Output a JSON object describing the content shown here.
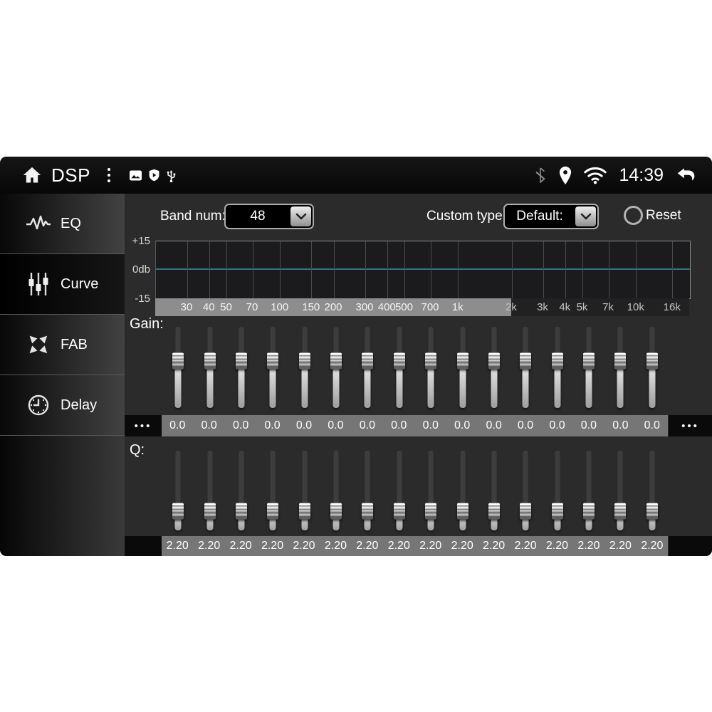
{
  "status_bar": {
    "title": "DSP",
    "time": "14:39",
    "left_icons": [
      "home-icon",
      "vertical-dots-menu-icon",
      "image-icon",
      "shield-icon",
      "usb-icon"
    ],
    "right_icons": [
      "bluetooth-icon",
      "location-icon",
      "wifi-icon",
      "back-icon"
    ]
  },
  "sidebar": {
    "items": [
      {
        "label": "EQ",
        "icon": "waveform-icon",
        "selected": false
      },
      {
        "label": "Curve",
        "icon": "faders-icon",
        "selected": true
      },
      {
        "label": "FAB",
        "icon": "fab-arrows-icon",
        "selected": false
      },
      {
        "label": "Delay",
        "icon": "clock-icon",
        "selected": false
      }
    ]
  },
  "controls": {
    "band_num_label": "Band num:",
    "band_num_value": "48",
    "custom_type_label": "Custom type:",
    "custom_type_value": "Default:",
    "reset_label": "Reset"
  },
  "eq_graph": {
    "y_axis_labels": [
      "+15",
      "0db",
      "-15"
    ],
    "freq_labels": [
      {
        "label": "30",
        "hz": 30
      },
      {
        "label": "40",
        "hz": 40
      },
      {
        "label": "50",
        "hz": 50
      },
      {
        "label": "70",
        "hz": 70
      },
      {
        "label": "100",
        "hz": 100
      },
      {
        "label": "150",
        "hz": 150
      },
      {
        "label": "200",
        "hz": 200
      },
      {
        "label": "300",
        "hz": 300
      },
      {
        "label": "400",
        "hz": 400
      },
      {
        "label": "500",
        "hz": 500
      },
      {
        "label": "700",
        "hz": 700
      },
      {
        "label": "1k",
        "hz": 1000
      },
      {
        "label": "2k",
        "hz": 2000
      },
      {
        "label": "3k",
        "hz": 3000
      },
      {
        "label": "4k",
        "hz": 4000
      },
      {
        "label": "5k",
        "hz": 5000
      },
      {
        "label": "7k",
        "hz": 7000
      },
      {
        "label": "10k",
        "hz": 10000
      },
      {
        "label": "16k",
        "hz": 16000
      }
    ],
    "freq_range_hz": [
      20,
      20000
    ],
    "curve": {
      "db": 0,
      "color": "#2e7682"
    },
    "strip_highlight_until_hz": 2000
  },
  "gain": {
    "label": "Gain:",
    "scroll_left": "•••",
    "scroll_right": "•••",
    "values": [
      "0.0",
      "0.0",
      "0.0",
      "0.0",
      "0.0",
      "0.0",
      "0.0",
      "0.0",
      "0.0",
      "0.0",
      "0.0",
      "0.0",
      "0.0",
      "0.0",
      "0.0",
      "0.0"
    ]
  },
  "q": {
    "label": "Q:",
    "values": [
      "2.20",
      "2.20",
      "2.20",
      "2.20",
      "2.20",
      "2.20",
      "2.20",
      "2.20",
      "2.20",
      "2.20",
      "2.20",
      "2.20",
      "2.20",
      "2.20",
      "2.20",
      "2.20"
    ]
  }
}
